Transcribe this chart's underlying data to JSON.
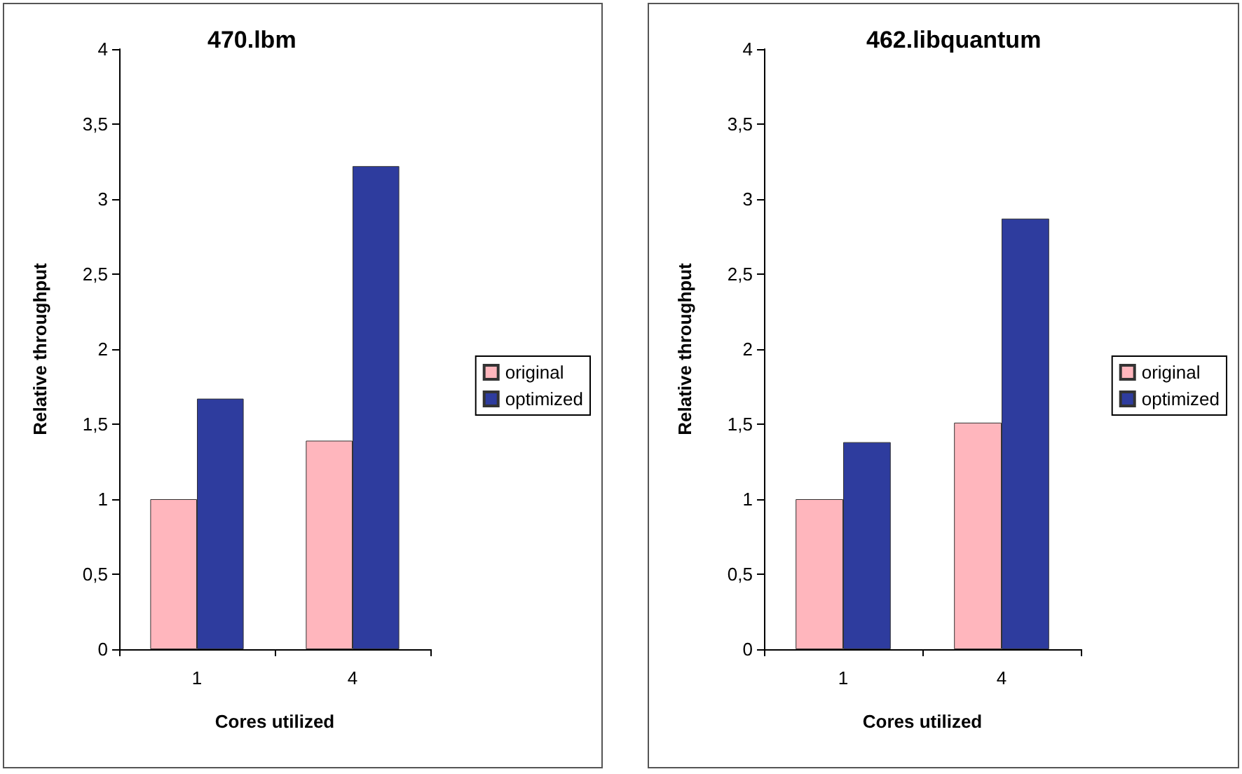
{
  "chart_data": [
    {
      "type": "bar",
      "title": "470.lbm",
      "xlabel": "Cores utilized",
      "ylabel": "Relative throughput",
      "categories": [
        "1",
        "4"
      ],
      "series": [
        {
          "name": "original",
          "color": "#ffb6bd",
          "values": [
            1.0,
            1.39
          ]
        },
        {
          "name": "optimized",
          "color": "#2e3c9e",
          "values": [
            1.67,
            3.22
          ]
        }
      ],
      "ylim": [
        0,
        4
      ],
      "yticks": [
        0,
        {
          "value": 0.5,
          "label": "0,5"
        },
        1,
        {
          "value": 1.5,
          "label": "1,5"
        },
        2,
        {
          "value": 2.5,
          "label": "2,5"
        },
        3,
        {
          "value": 3.5,
          "label": "3,5"
        },
        4
      ],
      "grid": false,
      "legend": "right"
    },
    {
      "type": "bar",
      "title": "462.libquantum",
      "xlabel": "Cores utilized",
      "ylabel": "Relative throughput",
      "categories": [
        "1",
        "4"
      ],
      "series": [
        {
          "name": "original",
          "color": "#ffb6bd",
          "values": [
            1.0,
            1.51
          ]
        },
        {
          "name": "optimized",
          "color": "#2e3c9e",
          "values": [
            1.38,
            2.87
          ]
        }
      ],
      "ylim": [
        0,
        4
      ],
      "yticks": [
        0,
        {
          "value": 0.5,
          "label": "0,5"
        },
        1,
        {
          "value": 1.5,
          "label": "1,5"
        },
        2,
        {
          "value": 2.5,
          "label": "2,5"
        },
        3,
        {
          "value": 3.5,
          "label": "3,5"
        },
        4
      ],
      "grid": false,
      "legend": "right"
    }
  ]
}
